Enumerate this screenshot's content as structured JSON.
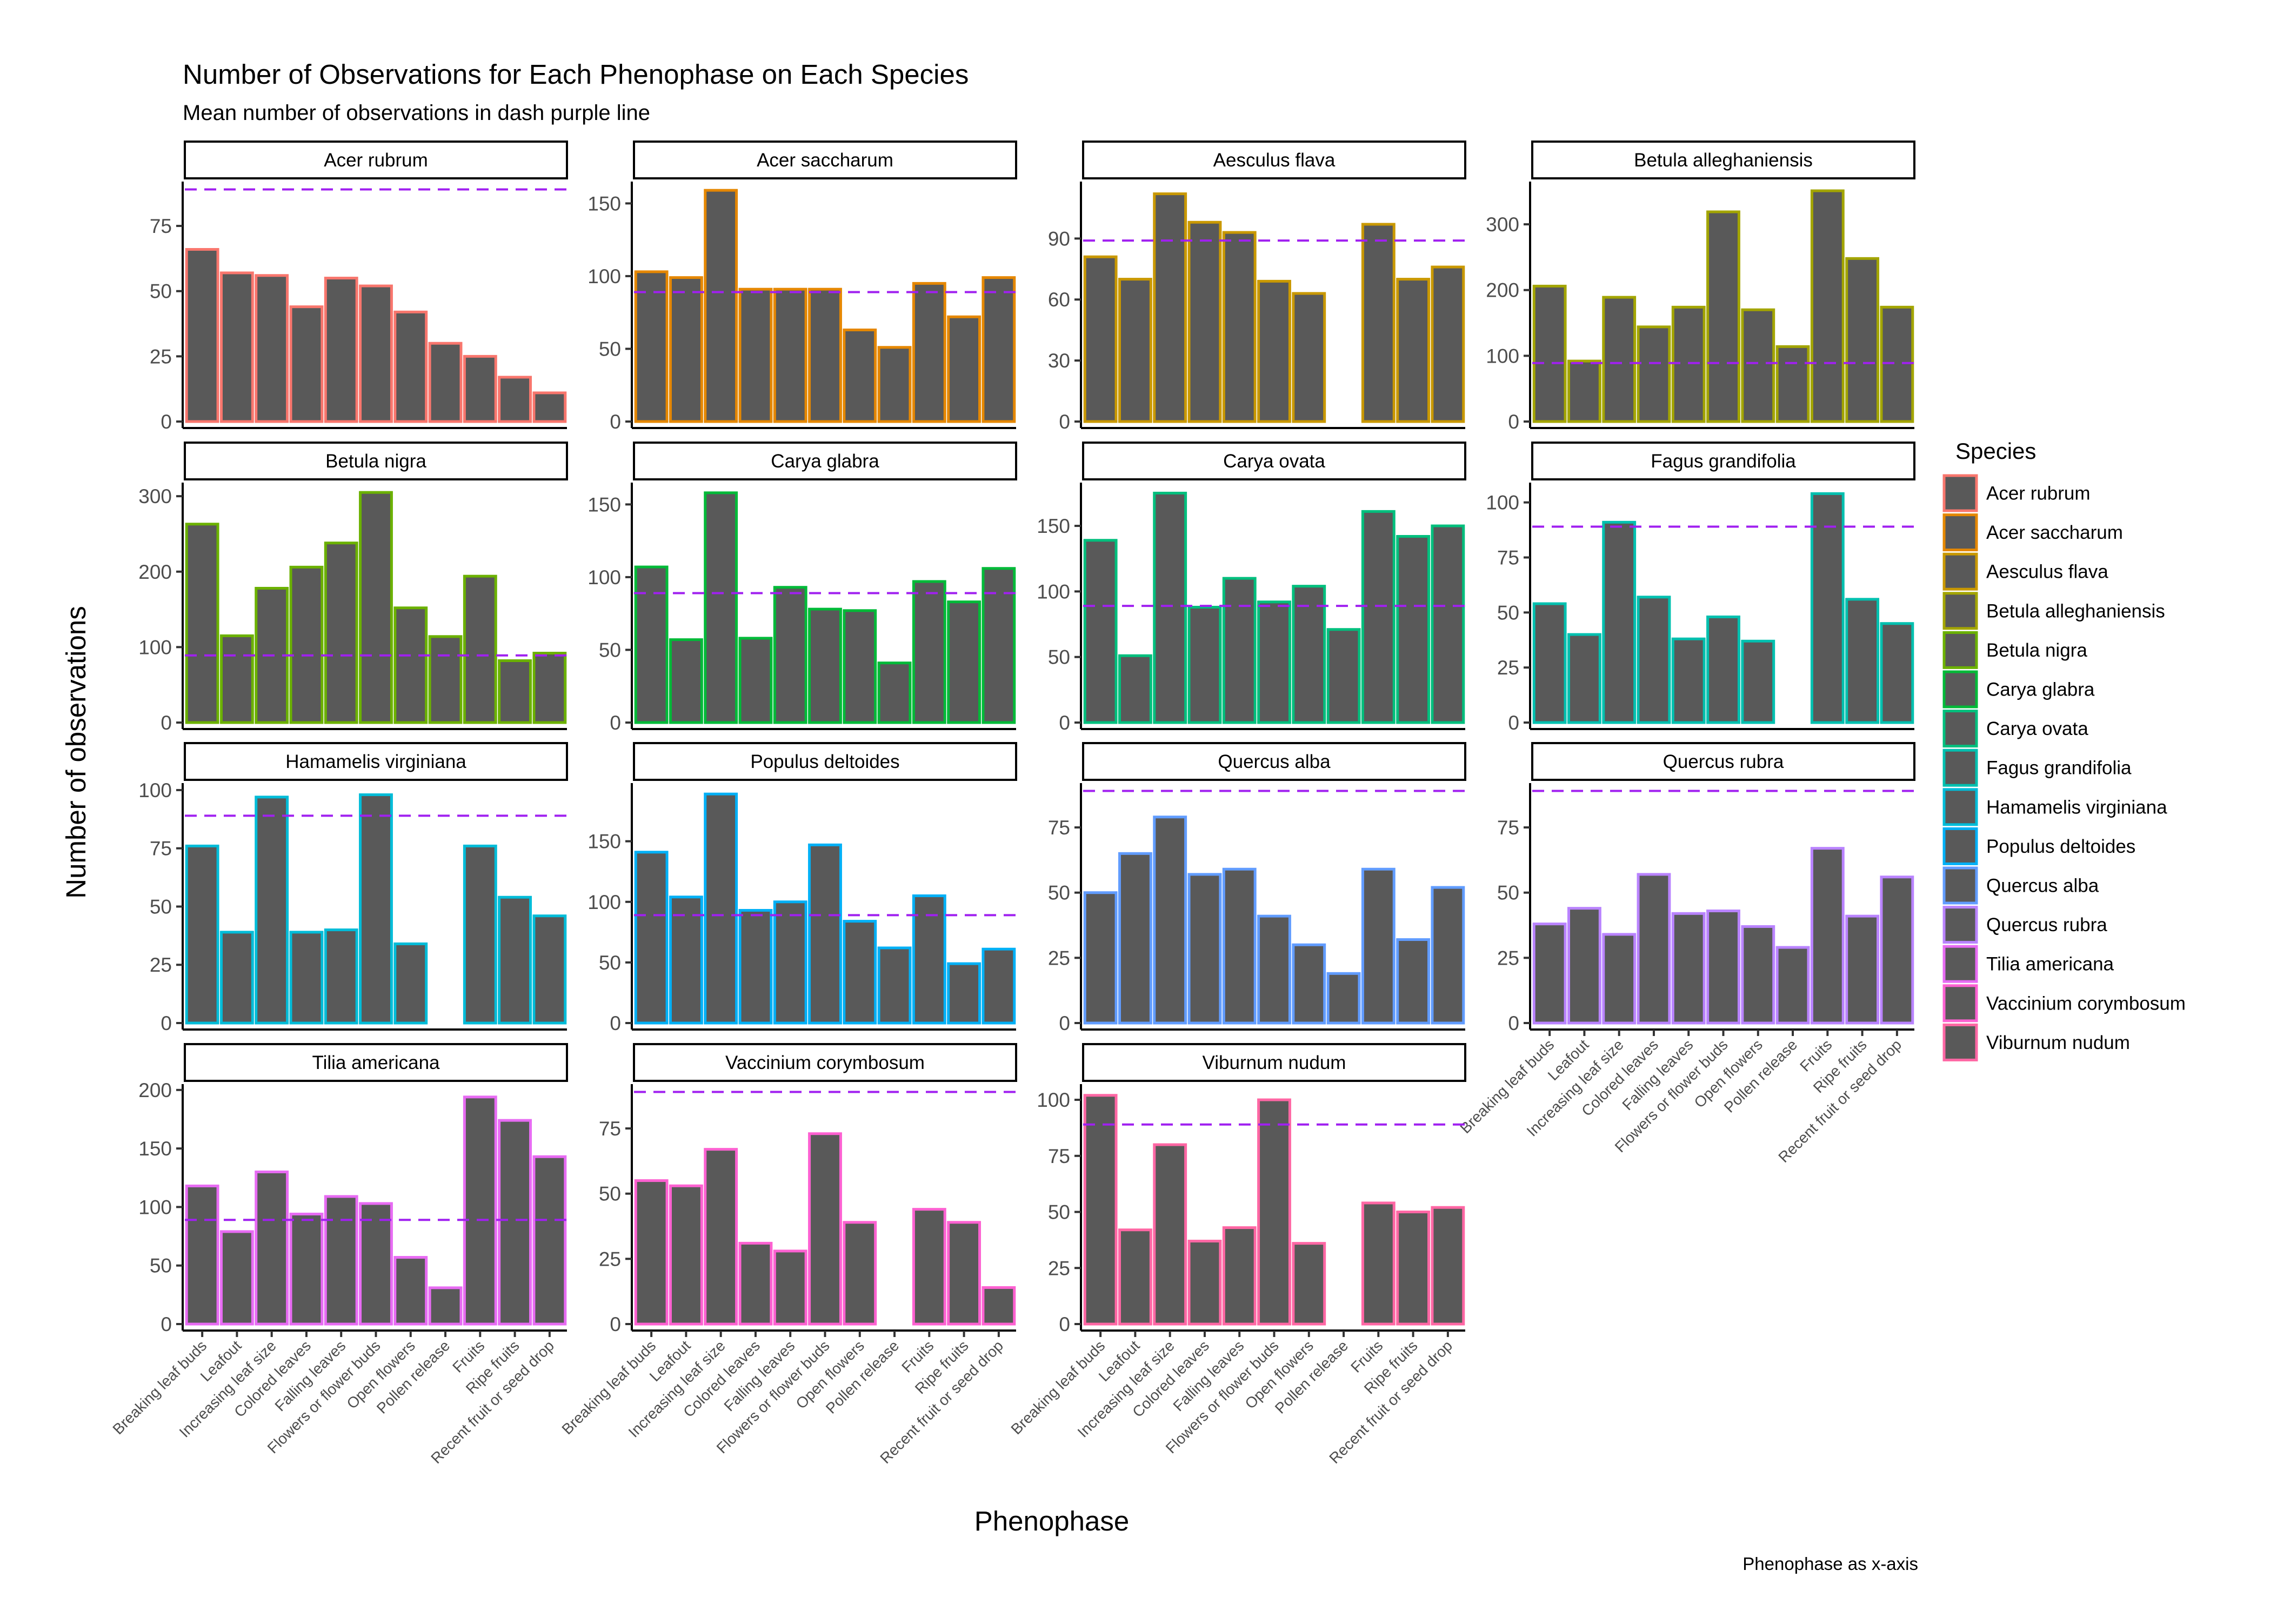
{
  "chart_data": {
    "type": "bar",
    "title": "Number of Observations for Each Phenophase on Each Species",
    "subtitle": "Mean number of observations in dash purple line",
    "xlabel": "Phenophase",
    "ylabel": "Number of observations",
    "caption": "Phenophase as x-axis",
    "mean_line": {
      "value": 89,
      "color": "#a020f0",
      "style": "dashed"
    },
    "bar_fill": "#595959",
    "categories": [
      "Breaking leaf buds",
      "Leafout",
      "Increasing leaf size",
      "Colored leaves",
      "Falling leaves",
      "Flowers or flower buds",
      "Open flowers",
      "Pollen release",
      "Fruits",
      "Ripe fruits",
      "Recent fruit or seed drop"
    ],
    "legend": {
      "title": "Species",
      "position": "right"
    },
    "grid": false,
    "panels": [
      {
        "species": "Acer rubrum",
        "color": "#F8766D",
        "ylim": [
          0,
          92
        ],
        "yticks": [
          0,
          25,
          50,
          75
        ],
        "values": [
          66,
          57,
          56,
          44,
          55,
          52,
          42,
          30,
          25,
          17,
          11
        ]
      },
      {
        "species": "Acer saccharum",
        "color": "#E58700",
        "ylim": [
          0,
          165
        ],
        "yticks": [
          0,
          50,
          100,
          150
        ],
        "values": [
          103,
          99,
          159,
          91,
          91,
          91,
          63,
          51,
          95,
          72,
          99
        ]
      },
      {
        "species": "Aesculus flava",
        "color": "#C99800",
        "ylim": [
          0,
          118
        ],
        "yticks": [
          0,
          30,
          60,
          90
        ],
        "values": [
          81,
          70,
          112,
          98,
          93,
          69,
          63,
          null,
          97,
          70,
          76
        ]
      },
      {
        "species": "Betula alleghaniensis",
        "color": "#A3A500",
        "ylim": [
          0,
          365
        ],
        "yticks": [
          0,
          100,
          200,
          300
        ],
        "values": [
          206,
          92,
          189,
          144,
          174,
          319,
          170,
          114,
          351,
          248,
          174
        ]
      },
      {
        "species": "Betula nigra",
        "color": "#6BB100",
        "ylim": [
          0,
          318
        ],
        "yticks": [
          0,
          100,
          200,
          300
        ],
        "values": [
          263,
          115,
          178,
          206,
          238,
          305,
          152,
          114,
          194,
          82,
          92
        ]
      },
      {
        "species": "Carya glabra",
        "color": "#00BA38",
        "ylim": [
          0,
          165
        ],
        "yticks": [
          0,
          50,
          100,
          150
        ],
        "values": [
          107,
          57,
          158,
          58,
          93,
          78,
          77,
          41,
          97,
          83,
          106
        ]
      },
      {
        "species": "Carya ovata",
        "color": "#00BF7D",
        "ylim": [
          0,
          183
        ],
        "yticks": [
          0,
          50,
          100,
          150
        ],
        "values": [
          139,
          51,
          175,
          88,
          110,
          92,
          104,
          71,
          161,
          142,
          150
        ]
      },
      {
        "species": "Fagus grandifolia",
        "color": "#00C0AF",
        "ylim": [
          0,
          109
        ],
        "yticks": [
          0,
          25,
          50,
          75,
          100
        ],
        "values": [
          54,
          40,
          91,
          57,
          38,
          48,
          37,
          null,
          104,
          56,
          45
        ]
      },
      {
        "species": "Hamamelis virginiana",
        "color": "#00BCD8",
        "ylim": [
          0,
          103
        ],
        "yticks": [
          0,
          25,
          50,
          75,
          100
        ],
        "values": [
          76,
          39,
          97,
          39,
          40,
          98,
          34,
          null,
          76,
          54,
          46
        ]
      },
      {
        "species": "Populus deltoides",
        "color": "#00B0F6",
        "ylim": [
          0,
          198
        ],
        "yticks": [
          0,
          50,
          100,
          150
        ],
        "values": [
          141,
          104,
          189,
          93,
          100,
          147,
          84,
          62,
          105,
          49,
          61
        ]
      },
      {
        "species": "Quercus alba",
        "color": "#619CFF",
        "ylim": [
          0,
          92
        ],
        "yticks": [
          0,
          25,
          50,
          75
        ],
        "values": [
          50,
          65,
          79,
          57,
          59,
          41,
          30,
          19,
          59,
          32,
          52
        ]
      },
      {
        "species": "Quercus rubra",
        "color": "#B983FF",
        "ylim": [
          0,
          92
        ],
        "yticks": [
          0,
          25,
          50,
          75
        ],
        "values": [
          38,
          44,
          34,
          57,
          42,
          43,
          37,
          29,
          67,
          41,
          56
        ]
      },
      {
        "species": "Tilia americana",
        "color": "#E76BF3",
        "ylim": [
          0,
          205
        ],
        "yticks": [
          0,
          50,
          100,
          150,
          200
        ],
        "values": [
          118,
          79,
          130,
          94,
          109,
          103,
          57,
          31,
          194,
          174,
          143
        ]
      },
      {
        "species": "Vaccinium corymbosum",
        "color": "#FD61D1",
        "ylim": [
          0,
          92
        ],
        "yticks": [
          0,
          25,
          50,
          75
        ],
        "values": [
          55,
          53,
          67,
          31,
          28,
          73,
          39,
          null,
          44,
          39,
          14
        ]
      },
      {
        "species": "Viburnum nudum",
        "color": "#FF67A4",
        "ylim": [
          0,
          107
        ],
        "yticks": [
          0,
          25,
          50,
          75,
          100
        ],
        "values": [
          102,
          42,
          80,
          37,
          43,
          100,
          36,
          null,
          54,
          50,
          52
        ]
      }
    ]
  }
}
